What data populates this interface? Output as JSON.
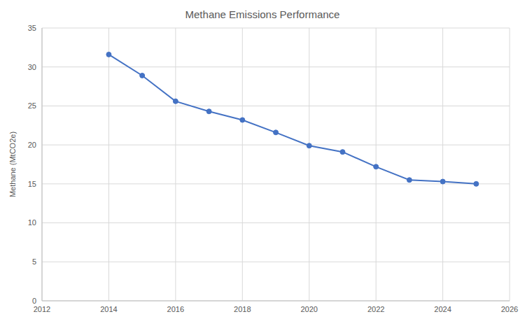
{
  "chart_data": {
    "type": "line",
    "title": "Methane Emissions Performance",
    "y_label": "Methane (MtCO2e)",
    "x": [
      2014,
      2015,
      2016,
      2017,
      2018,
      2019,
      2020,
      2021,
      2022,
      2023,
      2024,
      2025
    ],
    "values": [
      31.6,
      28.9,
      25.6,
      24.3,
      23.2,
      21.6,
      19.9,
      19.1,
      17.2,
      15.5,
      15.3,
      15.0
    ],
    "color": "#4472c4",
    "marker": "circle",
    "xlim": [
      2012,
      2026
    ],
    "xticks": [
      2012,
      2014,
      2016,
      2018,
      2020,
      2022,
      2024,
      2026
    ],
    "ylim": [
      0,
      35
    ],
    "yticks": [
      0,
      5,
      10,
      15,
      20,
      25,
      30,
      35
    ],
    "grid": true
  }
}
